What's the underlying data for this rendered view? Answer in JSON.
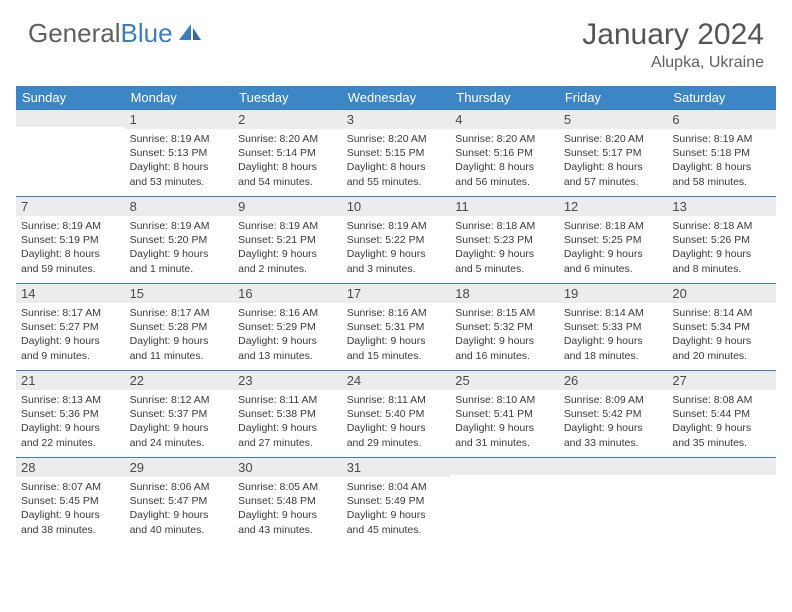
{
  "brand": {
    "part1": "General",
    "part2": "Blue"
  },
  "title": "January 2024",
  "location": "Alupka, Ukraine",
  "colors": {
    "header_bg": "#3d86c6",
    "header_text": "#ffffff",
    "daynum_bg": "#ececec",
    "border": "#3d7ec0",
    "body_text": "#3a3a3a",
    "title_text": "#555555"
  },
  "weekdays": [
    "Sunday",
    "Monday",
    "Tuesday",
    "Wednesday",
    "Thursday",
    "Friday",
    "Saturday"
  ],
  "weeks": [
    [
      null,
      {
        "n": "1",
        "sr": "8:19 AM",
        "ss": "5:13 PM",
        "dl": "8 hours and 53 minutes."
      },
      {
        "n": "2",
        "sr": "8:20 AM",
        "ss": "5:14 PM",
        "dl": "8 hours and 54 minutes."
      },
      {
        "n": "3",
        "sr": "8:20 AM",
        "ss": "5:15 PM",
        "dl": "8 hours and 55 minutes."
      },
      {
        "n": "4",
        "sr": "8:20 AM",
        "ss": "5:16 PM",
        "dl": "8 hours and 56 minutes."
      },
      {
        "n": "5",
        "sr": "8:20 AM",
        "ss": "5:17 PM",
        "dl": "8 hours and 57 minutes."
      },
      {
        "n": "6",
        "sr": "8:19 AM",
        "ss": "5:18 PM",
        "dl": "8 hours and 58 minutes."
      }
    ],
    [
      {
        "n": "7",
        "sr": "8:19 AM",
        "ss": "5:19 PM",
        "dl": "8 hours and 59 minutes."
      },
      {
        "n": "8",
        "sr": "8:19 AM",
        "ss": "5:20 PM",
        "dl": "9 hours and 1 minute."
      },
      {
        "n": "9",
        "sr": "8:19 AM",
        "ss": "5:21 PM",
        "dl": "9 hours and 2 minutes."
      },
      {
        "n": "10",
        "sr": "8:19 AM",
        "ss": "5:22 PM",
        "dl": "9 hours and 3 minutes."
      },
      {
        "n": "11",
        "sr": "8:18 AM",
        "ss": "5:23 PM",
        "dl": "9 hours and 5 minutes."
      },
      {
        "n": "12",
        "sr": "8:18 AM",
        "ss": "5:25 PM",
        "dl": "9 hours and 6 minutes."
      },
      {
        "n": "13",
        "sr": "8:18 AM",
        "ss": "5:26 PM",
        "dl": "9 hours and 8 minutes."
      }
    ],
    [
      {
        "n": "14",
        "sr": "8:17 AM",
        "ss": "5:27 PM",
        "dl": "9 hours and 9 minutes."
      },
      {
        "n": "15",
        "sr": "8:17 AM",
        "ss": "5:28 PM",
        "dl": "9 hours and 11 minutes."
      },
      {
        "n": "16",
        "sr": "8:16 AM",
        "ss": "5:29 PM",
        "dl": "9 hours and 13 minutes."
      },
      {
        "n": "17",
        "sr": "8:16 AM",
        "ss": "5:31 PM",
        "dl": "9 hours and 15 minutes."
      },
      {
        "n": "18",
        "sr": "8:15 AM",
        "ss": "5:32 PM",
        "dl": "9 hours and 16 minutes."
      },
      {
        "n": "19",
        "sr": "8:14 AM",
        "ss": "5:33 PM",
        "dl": "9 hours and 18 minutes."
      },
      {
        "n": "20",
        "sr": "8:14 AM",
        "ss": "5:34 PM",
        "dl": "9 hours and 20 minutes."
      }
    ],
    [
      {
        "n": "21",
        "sr": "8:13 AM",
        "ss": "5:36 PM",
        "dl": "9 hours and 22 minutes."
      },
      {
        "n": "22",
        "sr": "8:12 AM",
        "ss": "5:37 PM",
        "dl": "9 hours and 24 minutes."
      },
      {
        "n": "23",
        "sr": "8:11 AM",
        "ss": "5:38 PM",
        "dl": "9 hours and 27 minutes."
      },
      {
        "n": "24",
        "sr": "8:11 AM",
        "ss": "5:40 PM",
        "dl": "9 hours and 29 minutes."
      },
      {
        "n": "25",
        "sr": "8:10 AM",
        "ss": "5:41 PM",
        "dl": "9 hours and 31 minutes."
      },
      {
        "n": "26",
        "sr": "8:09 AM",
        "ss": "5:42 PM",
        "dl": "9 hours and 33 minutes."
      },
      {
        "n": "27",
        "sr": "8:08 AM",
        "ss": "5:44 PM",
        "dl": "9 hours and 35 minutes."
      }
    ],
    [
      {
        "n": "28",
        "sr": "8:07 AM",
        "ss": "5:45 PM",
        "dl": "9 hours and 38 minutes."
      },
      {
        "n": "29",
        "sr": "8:06 AM",
        "ss": "5:47 PM",
        "dl": "9 hours and 40 minutes."
      },
      {
        "n": "30",
        "sr": "8:05 AM",
        "ss": "5:48 PM",
        "dl": "9 hours and 43 minutes."
      },
      {
        "n": "31",
        "sr": "8:04 AM",
        "ss": "5:49 PM",
        "dl": "9 hours and 45 minutes."
      },
      null,
      null,
      null
    ]
  ],
  "labels": {
    "sunrise": "Sunrise: ",
    "sunset": "Sunset: ",
    "daylight": "Daylight: "
  }
}
